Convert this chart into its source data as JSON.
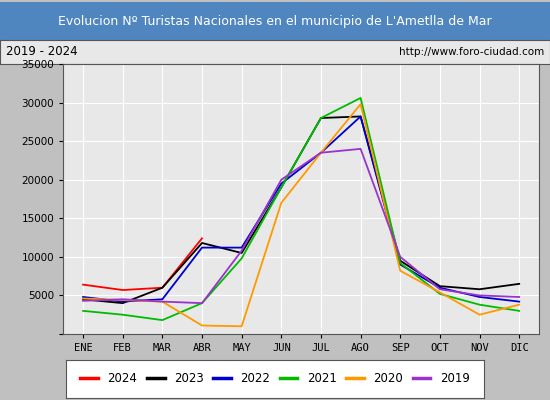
{
  "title": "Evolucion Nº Turistas Nacionales en el municipio de L'Ametlla de Mar",
  "subtitle_left": "2019 - 2024",
  "subtitle_right": "http://www.foro-ciudad.com",
  "title_bg_color": "#4f86c0",
  "title_text_color": "#ffffff",
  "subtitle_bg_color": "#e8e8e8",
  "subtitle_text_color": "#000000",
  "plot_bg_color": "#e8e8e8",
  "months": [
    "ENE",
    "FEB",
    "MAR",
    "ABR",
    "MAY",
    "JUN",
    "JUL",
    "AGO",
    "SEP",
    "OCT",
    "NOV",
    "DIC"
  ],
  "ylim": [
    0,
    35000
  ],
  "yticks": [
    0,
    5000,
    10000,
    15000,
    20000,
    25000,
    30000,
    35000
  ],
  "series": {
    "2024": {
      "color": "#ff0000",
      "data": [
        6400,
        5700,
        6000,
        12400,
        null,
        null,
        null,
        null,
        null,
        null,
        null,
        null
      ]
    },
    "2023": {
      "color": "#000000",
      "data": [
        4500,
        4000,
        6000,
        11800,
        10500,
        19000,
        28000,
        28200,
        9500,
        6200,
        5800,
        6500
      ]
    },
    "2022": {
      "color": "#0000cc",
      "data": [
        4800,
        4200,
        4500,
        11200,
        11200,
        19500,
        23500,
        28200,
        9000,
        6000,
        4800,
        4200
      ]
    },
    "2021": {
      "color": "#00bb00",
      "data": [
        3000,
        2500,
        1800,
        4000,
        9800,
        19000,
        28000,
        30600,
        9200,
        5200,
        3800,
        3000
      ]
    },
    "2020": {
      "color": "#ff9900",
      "data": [
        4600,
        4400,
        4200,
        1100,
        1000,
        17000,
        23500,
        29800,
        8200,
        5400,
        2500,
        3800
      ]
    },
    "2019": {
      "color": "#9933cc",
      "data": [
        4300,
        4500,
        4200,
        4000,
        10800,
        20000,
        23500,
        24000,
        10000,
        5800,
        5000,
        4800
      ]
    }
  },
  "legend_order": [
    "2024",
    "2023",
    "2022",
    "2021",
    "2020",
    "2019"
  ]
}
